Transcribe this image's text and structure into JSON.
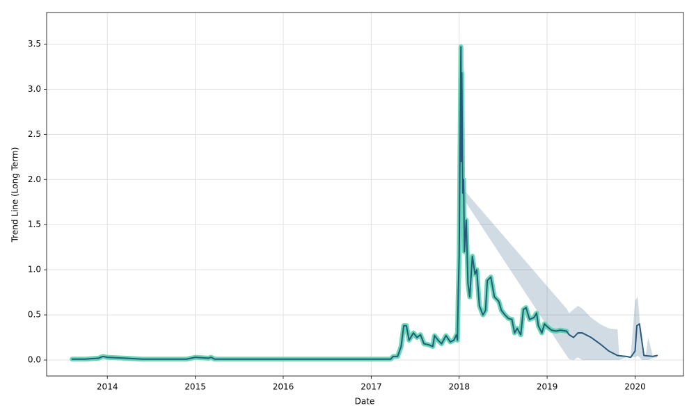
{
  "chart_data": {
    "type": "line",
    "x_label": "Date",
    "y_label": "Trend Line (Long Term)",
    "xlim": [
      2013.31,
      2020.55
    ],
    "ylim": [
      -0.177,
      3.85
    ],
    "xticks": [
      2014,
      2015,
      2016,
      2017,
      2018,
      2019,
      2020
    ],
    "yticks": [
      {
        "value": 0,
        "label": "0.0"
      },
      0.5,
      {
        "value": 1,
        "label": "1.0"
      },
      1.5,
      {
        "value": 2,
        "label": "2.0"
      },
      2.5,
      {
        "value": 3,
        "label": "3.0"
      },
      3.5
    ],
    "grid": true,
    "band": {
      "color": "#2b5c7e",
      "x": [
        2018.0,
        2018.02,
        2018.04,
        2019.22,
        2019.25,
        2019.3,
        2019.35,
        2019.4,
        2019.5,
        2019.6,
        2019.7,
        2019.8,
        2019.82,
        2019.9,
        2019.95,
        2020.0,
        2020.03,
        2020.08,
        2020.12,
        2020.15,
        2020.2,
        2020.25
      ],
      "lower": [
        1.1,
        3.3,
        1.8,
        0.05,
        0.01,
        0.0,
        0.03,
        0.0,
        0.0,
        0.0,
        0.0,
        0.0,
        0.0,
        0.03,
        0.03,
        0.03,
        0.05,
        0.0,
        0.0,
        0.0,
        0.02,
        0.03
      ],
      "upper": [
        1.2,
        3.65,
        1.9,
        0.57,
        0.52,
        0.56,
        0.6,
        0.57,
        0.47,
        0.4,
        0.35,
        0.34,
        0.04,
        0.04,
        0.04,
        0.66,
        0.7,
        0.1,
        0.05,
        0.25,
        0.05,
        0.05
      ]
    },
    "series": [
      {
        "color": "#4fd1a8",
        "x": [
          2013.6,
          2013.75,
          2013.9,
          2013.95,
          2014.0,
          2014.2,
          2014.4,
          2014.6,
          2014.9,
          2015.0,
          2015.15,
          2015.18,
          2015.22,
          2015.5,
          2016.0,
          2016.5,
          2017.0,
          2017.22,
          2017.25,
          2017.3,
          2017.34,
          2017.37,
          2017.4,
          2017.43,
          2017.48,
          2017.52,
          2017.56,
          2017.6,
          2017.65,
          2017.7,
          2017.72,
          2017.76,
          2017.8,
          2017.85,
          2017.9,
          2017.94,
          2017.97,
          2017.98,
          2017.99,
          2018.0,
          2018.01,
          2018.02,
          2018.025,
          2018.03,
          2018.04,
          2018.05,
          2018.06,
          2018.08,
          2018.1,
          2018.12,
          2018.15,
          2018.18,
          2018.2,
          2018.23,
          2018.27,
          2018.3,
          2018.32,
          2018.36,
          2018.4,
          2018.45,
          2018.48,
          2018.52,
          2018.56,
          2018.6,
          2018.63,
          2018.66,
          2018.7,
          2018.73,
          2018.76,
          2018.8,
          2018.85,
          2018.88,
          2018.9,
          2018.94,
          2018.97,
          2019.0,
          2019.05,
          2019.1,
          2019.15,
          2019.22
        ],
        "values": [
          0.01,
          0.01,
          0.02,
          0.04,
          0.03,
          0.02,
          0.01,
          0.01,
          0.01,
          0.03,
          0.02,
          0.03,
          0.01,
          0.01,
          0.01,
          0.01,
          0.01,
          0.01,
          0.04,
          0.04,
          0.15,
          0.38,
          0.38,
          0.22,
          0.3,
          0.25,
          0.28,
          0.18,
          0.17,
          0.15,
          0.27,
          0.22,
          0.18,
          0.27,
          0.2,
          0.22,
          0.28,
          0.22,
          0.75,
          1.15,
          2.35,
          3.47,
          2.2,
          3.18,
          1.85,
          2.0,
          1.2,
          1.55,
          0.85,
          0.7,
          1.15,
          0.95,
          1.0,
          0.6,
          0.5,
          0.55,
          0.88,
          0.92,
          0.7,
          0.65,
          0.55,
          0.5,
          0.46,
          0.45,
          0.3,
          0.35,
          0.28,
          0.56,
          0.58,
          0.45,
          0.47,
          0.52,
          0.38,
          0.3,
          0.4,
          0.37,
          0.33,
          0.32,
          0.33,
          0.32
        ]
      },
      {
        "color": "#26597c",
        "x": [
          2013.6,
          2013.75,
          2013.9,
          2013.95,
          2014.0,
          2014.2,
          2014.4,
          2014.6,
          2014.9,
          2015.0,
          2015.15,
          2015.18,
          2015.22,
          2015.5,
          2016.0,
          2016.5,
          2017.0,
          2017.22,
          2017.25,
          2017.3,
          2017.34,
          2017.37,
          2017.4,
          2017.43,
          2017.48,
          2017.52,
          2017.56,
          2017.6,
          2017.65,
          2017.7,
          2017.72,
          2017.76,
          2017.8,
          2017.85,
          2017.9,
          2017.94,
          2017.97,
          2017.98,
          2017.99,
          2018.0,
          2018.01,
          2018.02,
          2018.025,
          2018.03,
          2018.04,
          2018.05,
          2018.06,
          2018.08,
          2018.1,
          2018.12,
          2018.15,
          2018.18,
          2018.2,
          2018.23,
          2018.27,
          2018.3,
          2018.32,
          2018.36,
          2018.4,
          2018.45,
          2018.48,
          2018.52,
          2018.56,
          2018.6,
          2018.63,
          2018.66,
          2018.7,
          2018.73,
          2018.76,
          2018.8,
          2018.85,
          2018.88,
          2018.9,
          2018.94,
          2018.97,
          2019.0,
          2019.05,
          2019.1,
          2019.15,
          2019.22,
          2019.25,
          2019.3,
          2019.35,
          2019.4,
          2019.5,
          2019.6,
          2019.7,
          2019.8,
          2019.9,
          2019.95,
          2020.0,
          2020.02,
          2020.05,
          2020.1,
          2020.2,
          2020.25
        ],
        "values": [
          0.01,
          0.01,
          0.02,
          0.04,
          0.03,
          0.02,
          0.01,
          0.01,
          0.01,
          0.03,
          0.02,
          0.03,
          0.01,
          0.01,
          0.01,
          0.01,
          0.01,
          0.01,
          0.04,
          0.04,
          0.15,
          0.38,
          0.38,
          0.22,
          0.3,
          0.25,
          0.28,
          0.18,
          0.17,
          0.15,
          0.27,
          0.22,
          0.18,
          0.27,
          0.2,
          0.22,
          0.28,
          0.22,
          0.75,
          1.15,
          2.35,
          3.47,
          2.2,
          3.18,
          1.85,
          2.0,
          1.2,
          1.55,
          0.85,
          0.7,
          1.15,
          0.95,
          1.0,
          0.6,
          0.5,
          0.55,
          0.88,
          0.92,
          0.7,
          0.65,
          0.55,
          0.5,
          0.46,
          0.45,
          0.3,
          0.35,
          0.28,
          0.56,
          0.58,
          0.45,
          0.47,
          0.52,
          0.38,
          0.3,
          0.4,
          0.37,
          0.33,
          0.32,
          0.33,
          0.32,
          0.28,
          0.25,
          0.3,
          0.3,
          0.25,
          0.18,
          0.1,
          0.05,
          0.04,
          0.03,
          0.1,
          0.38,
          0.4,
          0.05,
          0.04,
          0.05
        ]
      }
    ]
  }
}
